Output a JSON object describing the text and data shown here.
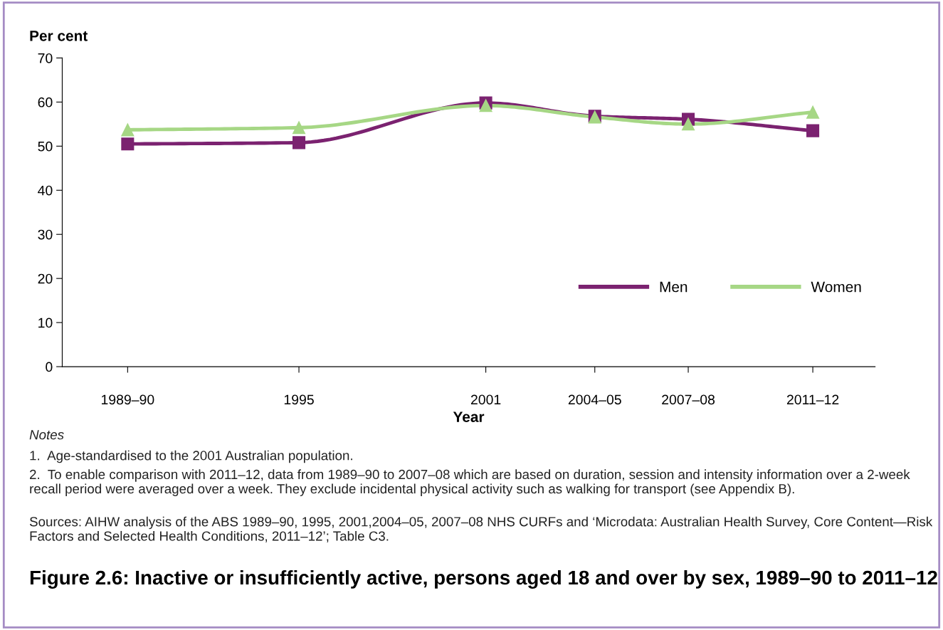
{
  "chart_data": {
    "type": "line",
    "title": "Figure 2.6: Inactive or insufficiently active, persons aged 18 and over by sex, 1989–90 to 2011–12",
    "xlabel": "Year",
    "ylabel": "Per cent",
    "x": [
      1989.5,
      1995,
      2001,
      2004.5,
      2007.5,
      2011.5
    ],
    "xlim": [
      1987.4,
      2013.5
    ],
    "xticks": [
      {
        "value": 1989.5,
        "label": "1989–90"
      },
      {
        "value": 1995,
        "label": "1995"
      },
      {
        "value": 2001,
        "label": "2001"
      },
      {
        "value": 2004.5,
        "label": "2004–05"
      },
      {
        "value": 2007.5,
        "label": "2007–08"
      },
      {
        "value": 2011.5,
        "label": "2011–12"
      }
    ],
    "ylim": [
      0,
      70
    ],
    "yticks": [
      0,
      10,
      20,
      30,
      40,
      50,
      60,
      70
    ],
    "series": [
      {
        "name": "Men",
        "color": "#7b2270",
        "marker": "square",
        "values": [
          50.5,
          50.8,
          59.8,
          56.8,
          56.1,
          53.5
        ]
      },
      {
        "name": "Women",
        "color": "#a6d785",
        "marker": "triangle",
        "values": [
          53.7,
          54.2,
          59.2,
          56.6,
          55.0,
          57.7
        ]
      }
    ],
    "legend": "right",
    "grid": false,
    "annotations": [
      "Notes",
      "1.  Age-standardised to the 2001 Australian population.",
      "2.  To enable comparison with 2011–12, data from 1989–90 to 2007–08 which are based on duration, session and intensity information over a 2-week recall period were averaged over a week. They exclude incidental physical activity such as walking for transport (see Appendix B).",
      "Sources: AIHW analysis of the ABS 1989–90, 1995, 2001,2004–05, 2007–08 NHS CURFs and ‘Microdata: Australian Health Survey, Core Content—Risk Factors and Selected Health Conditions, 2011–12’; Table C3."
    ]
  }
}
